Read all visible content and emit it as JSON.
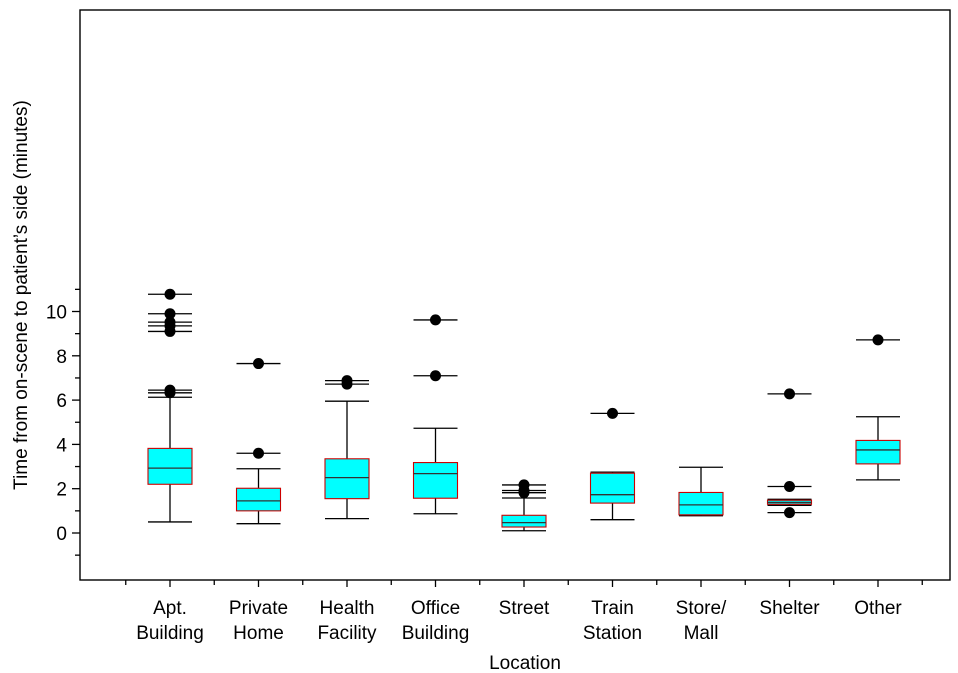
{
  "chart_data": {
    "type": "box",
    "xlabel": "Location",
    "ylabel": "Time from on-scene to patient’s side (minutes)",
    "ylim": [
      -1.0,
      11.8
    ],
    "yticks": [
      0,
      2,
      4,
      6,
      8,
      10
    ],
    "grid": false,
    "colors": {
      "box_fill": "#00ffff",
      "box_border": "#cc0000",
      "line": "#000000"
    },
    "categories": [
      {
        "label": [
          "Apt.",
          "Building"
        ],
        "whisker_low": 0.5,
        "q1": 2.2,
        "median": 2.93,
        "q3": 3.82,
        "whisker_high": 6.13,
        "outliers": [
          6.33,
          6.45,
          9.1,
          9.35,
          9.52,
          9.9,
          10.78
        ]
      },
      {
        "label": [
          "Private",
          "Home"
        ],
        "whisker_low": 0.42,
        "q1": 1.0,
        "median": 1.45,
        "q3": 2.02,
        "whisker_high": 2.9,
        "outliers": [
          3.6,
          7.65
        ]
      },
      {
        "label": [
          "Health",
          "Facility"
        ],
        "whisker_low": 0.65,
        "q1": 1.55,
        "median": 2.5,
        "q3": 3.35,
        "whisker_high": 5.95,
        "outliers": [
          6.72,
          6.88
        ]
      },
      {
        "label": [
          "Office",
          "Building"
        ],
        "whisker_low": 0.87,
        "q1": 1.57,
        "median": 2.68,
        "q3": 3.18,
        "whisker_high": 4.73,
        "outliers": [
          7.1,
          9.62
        ]
      },
      {
        "label": [
          "Street"
        ],
        "whisker_low": 0.1,
        "q1": 0.27,
        "median": 0.47,
        "q3": 0.8,
        "whisker_high": 1.58,
        "outliers": [
          1.82,
          1.92,
          2.17
        ]
      },
      {
        "label": [
          "Train",
          "Station"
        ],
        "whisker_low": 0.6,
        "q1": 1.35,
        "median": 1.73,
        "q3": 2.7,
        "whisker_high": 2.75,
        "outliers": [
          5.4
        ]
      },
      {
        "label": [
          "Store/",
          "Mall"
        ],
        "whisker_low": 0.78,
        "q1": 0.82,
        "median": 1.27,
        "q3": 1.83,
        "whisker_high": 2.97,
        "outliers": []
      },
      {
        "label": [
          "Shelter"
        ],
        "whisker_low": 1.25,
        "q1": 1.3,
        "median": 1.38,
        "q3": 1.48,
        "whisker_high": 1.52,
        "outliers": [
          0.92,
          2.1,
          6.28
        ]
      },
      {
        "label": [
          "Other"
        ],
        "whisker_low": 2.4,
        "q1": 3.12,
        "median": 3.75,
        "q3": 4.18,
        "whisker_high": 5.25,
        "outliers": [
          8.72
        ]
      }
    ]
  }
}
